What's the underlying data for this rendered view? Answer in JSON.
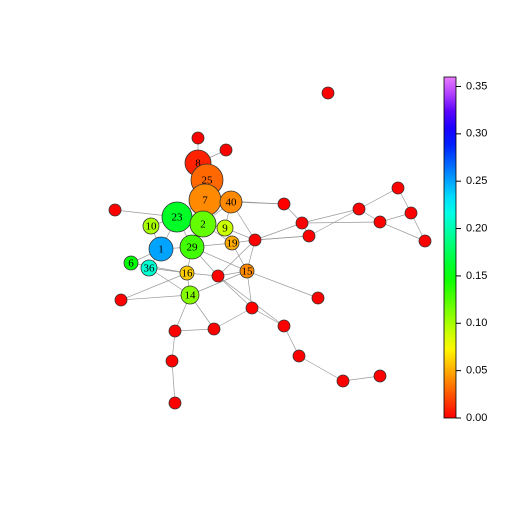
{
  "chart_data": {
    "type": "network",
    "nodes": [
      {
        "label": "8",
        "value": 0.01
      },
      {
        "label": "25",
        "value": 0.03
      },
      {
        "label": "7",
        "value": 0.04
      },
      {
        "label": "23",
        "value": 0.16
      },
      {
        "label": "2",
        "value": 0.12
      },
      {
        "label": "40",
        "value": 0.04
      },
      {
        "label": "29",
        "value": 0.13
      },
      {
        "label": "1",
        "value": 0.25
      },
      {
        "label": "9",
        "value": 0.09
      },
      {
        "label": "10",
        "value": 0.1
      },
      {
        "label": "19",
        "value": 0.05
      },
      {
        "label": "36",
        "value": 0.21
      },
      {
        "label": "6",
        "value": 0.15
      },
      {
        "label": "16",
        "value": 0.06
      },
      {
        "label": "14",
        "value": 0.11
      },
      {
        "label": "15",
        "value": 0.04
      },
      {
        "label": null,
        "value": 0
      },
      {
        "label": null,
        "value": 0
      },
      {
        "label": null,
        "value": 0
      },
      {
        "label": null,
        "value": 0
      },
      {
        "label": null,
        "value": 0
      },
      {
        "label": null,
        "value": 0
      },
      {
        "label": null,
        "value": 0
      },
      {
        "label": null,
        "value": 0
      },
      {
        "label": null,
        "value": 0
      },
      {
        "label": null,
        "value": 0
      },
      {
        "label": null,
        "value": 0
      },
      {
        "label": null,
        "value": 0
      },
      {
        "label": null,
        "value": 0
      },
      {
        "label": null,
        "value": 0
      },
      {
        "label": null,
        "value": 0
      },
      {
        "label": null,
        "value": 0
      },
      {
        "label": null,
        "value": 0
      },
      {
        "label": null,
        "value": 0
      },
      {
        "label": null,
        "value": 0
      },
      {
        "label": null,
        "value": 0
      },
      {
        "label": null,
        "value": 0
      },
      {
        "label": null,
        "value": 0
      },
      {
        "label": null,
        "value": 0
      },
      {
        "label": null,
        "value": 0
      },
      {
        "label": null,
        "value": 0
      }
    ],
    "ylim": [
      0,
      0.36
    ],
    "yticks": [
      {
        "value": 0,
        "label": "0.00"
      },
      {
        "value": 0.05,
        "label": "0.05"
      },
      {
        "value": 0.1,
        "label": "0.10"
      },
      {
        "value": 0.15,
        "label": "0.15"
      },
      {
        "value": 0.2,
        "label": "0.20"
      },
      {
        "value": 0.25,
        "label": "0.25"
      },
      {
        "value": 0.3,
        "label": "0.30"
      },
      {
        "value": 0.35,
        "label": "0.35"
      }
    ]
  }
}
